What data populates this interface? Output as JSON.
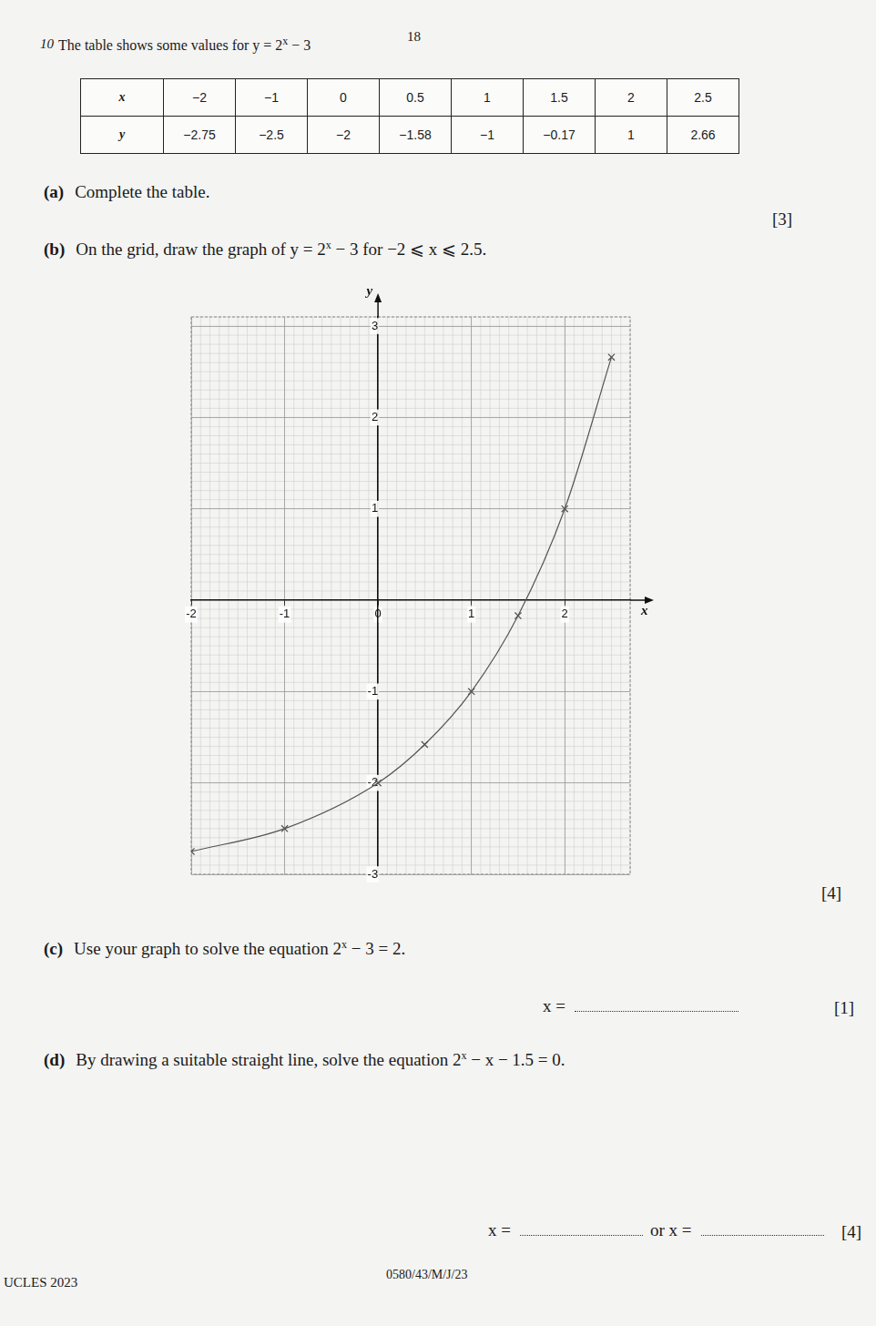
{
  "page_number": "18",
  "question_number": "10",
  "intro": [
    "The table shows some values for ",
    "y = 2",
    {
      "sup": "x"
    },
    " − 3"
  ],
  "table": {
    "rows": [
      [
        "x",
        "−2",
        "−1",
        "0",
        "0.5",
        "1",
        "1.5",
        "2",
        "2.5"
      ],
      [
        "y",
        "−2.75",
        "−2.5",
        "−2",
        "−1.58",
        "−1",
        "−0.17",
        "1",
        "2.66"
      ]
    ]
  },
  "parts": [
    {
      "label": "(a)",
      "text": [
        "Complete the table."
      ],
      "marks": "[3]"
    },
    {
      "label": "(b)",
      "text": [
        "On the grid, draw the graph of ",
        "y = 2",
        {
          "sup": "x"
        },
        " − 3",
        " for −2 ⩽ x ⩽ 2.5."
      ],
      "marks": "[4]"
    },
    {
      "label": "(c)",
      "text": [
        "Use your graph to solve the equation ",
        "2",
        {
          "sup": "x"
        },
        " − 3 = 2."
      ],
      "answer": [
        "x ="
      ],
      "marks": "[1]"
    },
    {
      "label": "(d)",
      "text": [
        "By drawing a suitable straight line, solve the equation ",
        "2",
        {
          "sup": "x"
        },
        " − x − 1.5 = 0."
      ],
      "answer": [
        "x =",
        "or x ="
      ],
      "marks": "[4]"
    }
  ],
  "footer": {
    "left": "UCLES 2023",
    "center": "0580/43/M/J/23"
  },
  "chart_data": {
    "type": "line",
    "x": [
      -2,
      -1,
      0,
      0.5,
      1,
      1.5,
      2,
      2.5
    ],
    "values": [
      -2.75,
      -2.5,
      -2,
      -1.58,
      -1,
      -0.17,
      1,
      2.66
    ],
    "xlim": [
      -2,
      2.7
    ],
    "ylim": [
      -3,
      3.1
    ],
    "xticks": [
      -2,
      -1,
      0,
      1,
      2
    ],
    "yticks": [
      -3,
      -2,
      -1,
      1,
      2,
      3
    ],
    "x_label": "x",
    "y_label": "y",
    "grid": true,
    "color": "#555555",
    "marker": "cross",
    "line_style": "solid"
  }
}
